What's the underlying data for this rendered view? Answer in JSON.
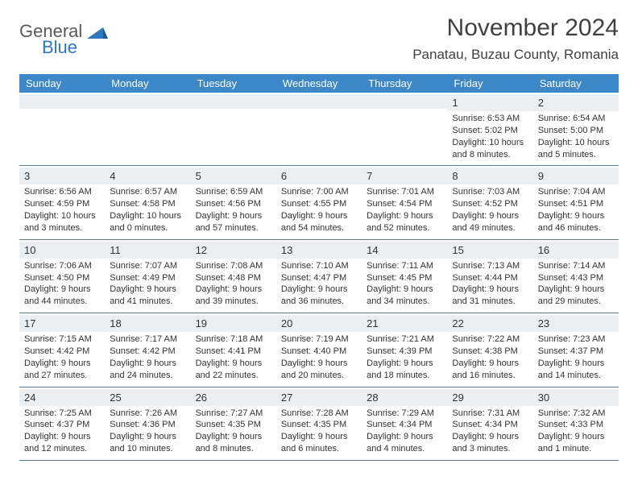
{
  "brand": {
    "general": "General",
    "blue": "Blue"
  },
  "title": "November 2024",
  "location": "Panatau, Buzau County, Romania",
  "colors": {
    "header_bg": "#3b87c8",
    "header_text": "#ffffff",
    "day_head_bg": "#eceff1",
    "border": "#5a7a9a",
    "text": "#333333",
    "logo_gray": "#5a5a5a",
    "logo_blue": "#2f77bb"
  },
  "weekdays": [
    "Sunday",
    "Monday",
    "Tuesday",
    "Wednesday",
    "Thursday",
    "Friday",
    "Saturday"
  ],
  "weeks": [
    [
      null,
      null,
      null,
      null,
      null,
      {
        "n": "1",
        "sunrise": "Sunrise: 6:53 AM",
        "sunset": "Sunset: 5:02 PM",
        "daylight": "Daylight: 10 hours and 8 minutes."
      },
      {
        "n": "2",
        "sunrise": "Sunrise: 6:54 AM",
        "sunset": "Sunset: 5:00 PM",
        "daylight": "Daylight: 10 hours and 5 minutes."
      }
    ],
    [
      {
        "n": "3",
        "sunrise": "Sunrise: 6:56 AM",
        "sunset": "Sunset: 4:59 PM",
        "daylight": "Daylight: 10 hours and 3 minutes."
      },
      {
        "n": "4",
        "sunrise": "Sunrise: 6:57 AM",
        "sunset": "Sunset: 4:58 PM",
        "daylight": "Daylight: 10 hours and 0 minutes."
      },
      {
        "n": "5",
        "sunrise": "Sunrise: 6:59 AM",
        "sunset": "Sunset: 4:56 PM",
        "daylight": "Daylight: 9 hours and 57 minutes."
      },
      {
        "n": "6",
        "sunrise": "Sunrise: 7:00 AM",
        "sunset": "Sunset: 4:55 PM",
        "daylight": "Daylight: 9 hours and 54 minutes."
      },
      {
        "n": "7",
        "sunrise": "Sunrise: 7:01 AM",
        "sunset": "Sunset: 4:54 PM",
        "daylight": "Daylight: 9 hours and 52 minutes."
      },
      {
        "n": "8",
        "sunrise": "Sunrise: 7:03 AM",
        "sunset": "Sunset: 4:52 PM",
        "daylight": "Daylight: 9 hours and 49 minutes."
      },
      {
        "n": "9",
        "sunrise": "Sunrise: 7:04 AM",
        "sunset": "Sunset: 4:51 PM",
        "daylight": "Daylight: 9 hours and 46 minutes."
      }
    ],
    [
      {
        "n": "10",
        "sunrise": "Sunrise: 7:06 AM",
        "sunset": "Sunset: 4:50 PM",
        "daylight": "Daylight: 9 hours and 44 minutes."
      },
      {
        "n": "11",
        "sunrise": "Sunrise: 7:07 AM",
        "sunset": "Sunset: 4:49 PM",
        "daylight": "Daylight: 9 hours and 41 minutes."
      },
      {
        "n": "12",
        "sunrise": "Sunrise: 7:08 AM",
        "sunset": "Sunset: 4:48 PM",
        "daylight": "Daylight: 9 hours and 39 minutes."
      },
      {
        "n": "13",
        "sunrise": "Sunrise: 7:10 AM",
        "sunset": "Sunset: 4:47 PM",
        "daylight": "Daylight: 9 hours and 36 minutes."
      },
      {
        "n": "14",
        "sunrise": "Sunrise: 7:11 AM",
        "sunset": "Sunset: 4:45 PM",
        "daylight": "Daylight: 9 hours and 34 minutes."
      },
      {
        "n": "15",
        "sunrise": "Sunrise: 7:13 AM",
        "sunset": "Sunset: 4:44 PM",
        "daylight": "Daylight: 9 hours and 31 minutes."
      },
      {
        "n": "16",
        "sunrise": "Sunrise: 7:14 AM",
        "sunset": "Sunset: 4:43 PM",
        "daylight": "Daylight: 9 hours and 29 minutes."
      }
    ],
    [
      {
        "n": "17",
        "sunrise": "Sunrise: 7:15 AM",
        "sunset": "Sunset: 4:42 PM",
        "daylight": "Daylight: 9 hours and 27 minutes."
      },
      {
        "n": "18",
        "sunrise": "Sunrise: 7:17 AM",
        "sunset": "Sunset: 4:42 PM",
        "daylight": "Daylight: 9 hours and 24 minutes."
      },
      {
        "n": "19",
        "sunrise": "Sunrise: 7:18 AM",
        "sunset": "Sunset: 4:41 PM",
        "daylight": "Daylight: 9 hours and 22 minutes."
      },
      {
        "n": "20",
        "sunrise": "Sunrise: 7:19 AM",
        "sunset": "Sunset: 4:40 PM",
        "daylight": "Daylight: 9 hours and 20 minutes."
      },
      {
        "n": "21",
        "sunrise": "Sunrise: 7:21 AM",
        "sunset": "Sunset: 4:39 PM",
        "daylight": "Daylight: 9 hours and 18 minutes."
      },
      {
        "n": "22",
        "sunrise": "Sunrise: 7:22 AM",
        "sunset": "Sunset: 4:38 PM",
        "daylight": "Daylight: 9 hours and 16 minutes."
      },
      {
        "n": "23",
        "sunrise": "Sunrise: 7:23 AM",
        "sunset": "Sunset: 4:37 PM",
        "daylight": "Daylight: 9 hours and 14 minutes."
      }
    ],
    [
      {
        "n": "24",
        "sunrise": "Sunrise: 7:25 AM",
        "sunset": "Sunset: 4:37 PM",
        "daylight": "Daylight: 9 hours and 12 minutes."
      },
      {
        "n": "25",
        "sunrise": "Sunrise: 7:26 AM",
        "sunset": "Sunset: 4:36 PM",
        "daylight": "Daylight: 9 hours and 10 minutes."
      },
      {
        "n": "26",
        "sunrise": "Sunrise: 7:27 AM",
        "sunset": "Sunset: 4:35 PM",
        "daylight": "Daylight: 9 hours and 8 minutes."
      },
      {
        "n": "27",
        "sunrise": "Sunrise: 7:28 AM",
        "sunset": "Sunset: 4:35 PM",
        "daylight": "Daylight: 9 hours and 6 minutes."
      },
      {
        "n": "28",
        "sunrise": "Sunrise: 7:29 AM",
        "sunset": "Sunset: 4:34 PM",
        "daylight": "Daylight: 9 hours and 4 minutes."
      },
      {
        "n": "29",
        "sunrise": "Sunrise: 7:31 AM",
        "sunset": "Sunset: 4:34 PM",
        "daylight": "Daylight: 9 hours and 3 minutes."
      },
      {
        "n": "30",
        "sunrise": "Sunrise: 7:32 AM",
        "sunset": "Sunset: 4:33 PM",
        "daylight": "Daylight: 9 hours and 1 minute."
      }
    ]
  ]
}
